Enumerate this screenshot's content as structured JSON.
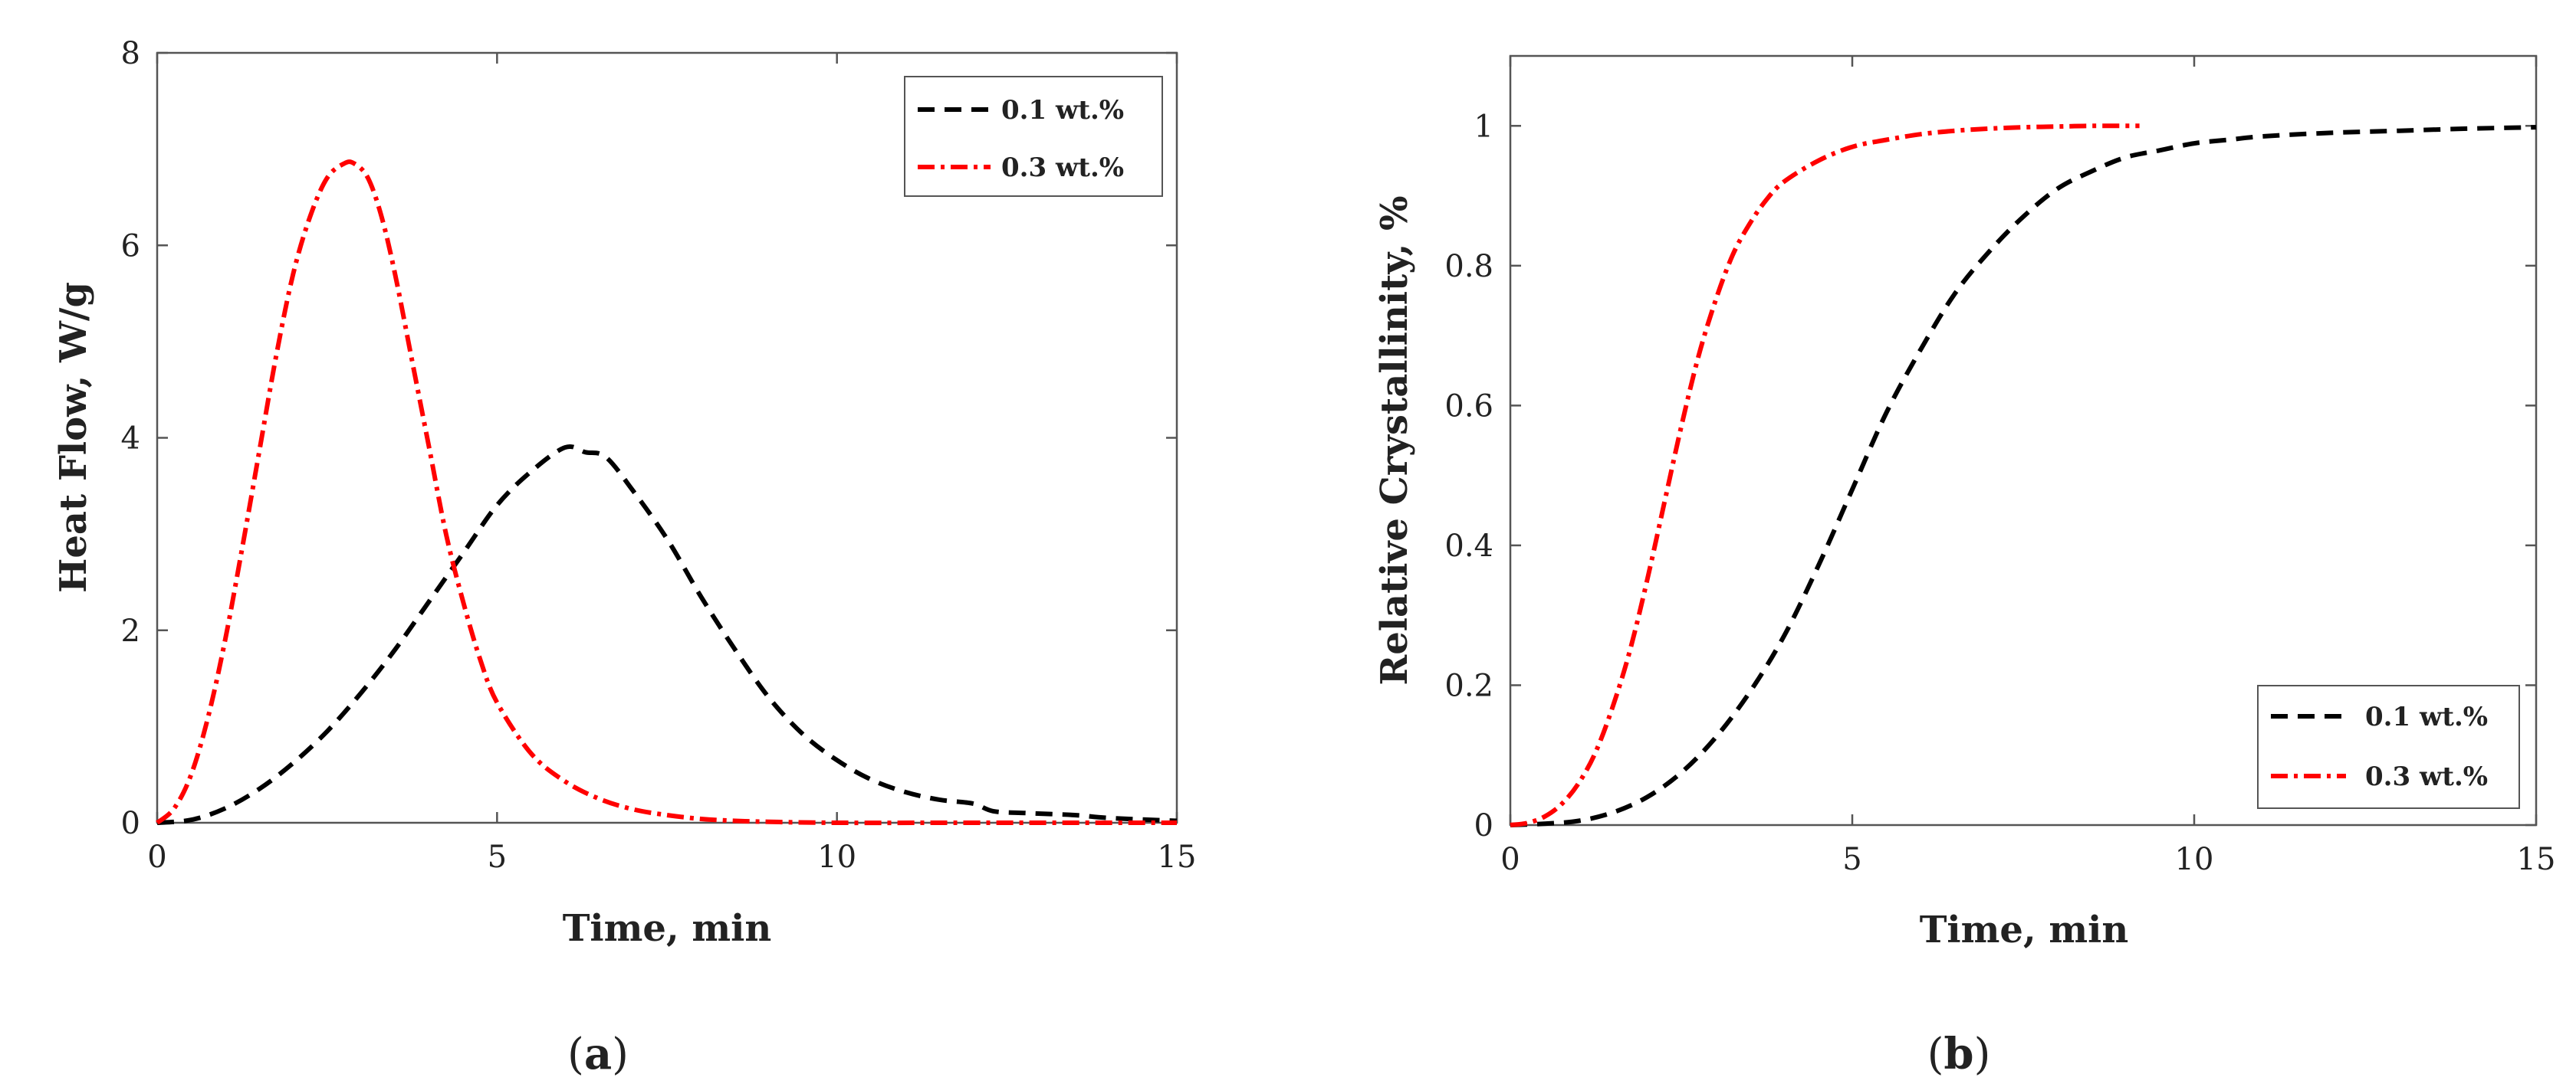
{
  "colors": {
    "series_0_1": "#000000",
    "series_0_3": "#ff0000",
    "axis": "#555555"
  },
  "chart_data": [
    {
      "type": "line",
      "id": "a",
      "caption": "a",
      "xlabel": "Time, min",
      "ylabel": "Heat Flow,  W/g",
      "xlim": [
        0,
        15
      ],
      "ylim": [
        0,
        8
      ],
      "xticks": [
        0,
        5,
        10,
        15
      ],
      "yticks": [
        0,
        2,
        4,
        6,
        8
      ],
      "legend_position": "top-right",
      "series": [
        {
          "name": "0.1 wt.%",
          "color": "#000000",
          "style": "dashed",
          "x": [
            0,
            0.5,
            1,
            1.5,
            2,
            2.5,
            3,
            3.5,
            4,
            4.5,
            5,
            5.5,
            6,
            6.3,
            6.6,
            7,
            7.5,
            8,
            8.5,
            9,
            9.5,
            10,
            10.5,
            11,
            11.5,
            12,
            12.3,
            12.8,
            13.5,
            14,
            15
          ],
          "y": [
            0.0,
            0.03,
            0.15,
            0.35,
            0.62,
            0.95,
            1.35,
            1.8,
            2.3,
            2.8,
            3.3,
            3.65,
            3.9,
            3.85,
            3.8,
            3.45,
            2.95,
            2.35,
            1.8,
            1.3,
            0.92,
            0.65,
            0.45,
            0.32,
            0.24,
            0.2,
            0.12,
            0.1,
            0.08,
            0.05,
            0.02
          ]
        },
        {
          "name": "0.3 wt.%",
          "color": "#ff0000",
          "style": "dashdot",
          "x": [
            0,
            0.25,
            0.5,
            0.75,
            1,
            1.25,
            1.5,
            1.75,
            2,
            2.25,
            2.5,
            2.75,
            2.9,
            3.1,
            3.3,
            3.5,
            3.75,
            4,
            4.25,
            4.5,
            4.75,
            5,
            5.5,
            6,
            6.5,
            7,
            7.5,
            8,
            8.5,
            9,
            10,
            12,
            15
          ],
          "y": [
            0.0,
            0.15,
            0.5,
            1.1,
            1.9,
            2.85,
            3.85,
            4.85,
            5.7,
            6.3,
            6.7,
            6.85,
            6.85,
            6.7,
            6.3,
            5.7,
            4.8,
            3.9,
            3.0,
            2.3,
            1.7,
            1.25,
            0.72,
            0.43,
            0.25,
            0.14,
            0.08,
            0.04,
            0.02,
            0.01,
            0.0,
            0.0,
            0.0
          ]
        }
      ]
    },
    {
      "type": "line",
      "id": "b",
      "caption": "b",
      "xlabel": "Time, min",
      "ylabel": "Relative Crystallinity, %",
      "xlim": [
        0,
        15
      ],
      "ylim": [
        0,
        1.1
      ],
      "xticks": [
        0,
        5,
        10,
        15
      ],
      "yticks": [
        0,
        0.2,
        0.4,
        0.6,
        0.8,
        1
      ],
      "legend_position": "bottom-right",
      "series": [
        {
          "name": "0.1 wt.%",
          "color": "#000000",
          "style": "dashed",
          "x": [
            0,
            0.5,
            1,
            1.5,
            2,
            2.5,
            3,
            3.5,
            4,
            4.5,
            5,
            5.5,
            6,
            6.5,
            7,
            7.5,
            8,
            8.5,
            9,
            9.5,
            10,
            10.5,
            11,
            12,
            13,
            14,
            15
          ],
          "y": [
            0.0,
            0.002,
            0.006,
            0.018,
            0.04,
            0.075,
            0.125,
            0.19,
            0.27,
            0.37,
            0.48,
            0.59,
            0.68,
            0.76,
            0.82,
            0.87,
            0.91,
            0.935,
            0.955,
            0.965,
            0.975,
            0.98,
            0.985,
            0.99,
            0.993,
            0.996,
            0.998
          ]
        },
        {
          "name": "0.3 wt.%",
          "color": "#ff0000",
          "style": "dashdot",
          "x": [
            0,
            0.25,
            0.5,
            0.75,
            1,
            1.25,
            1.5,
            1.75,
            2,
            2.25,
            2.5,
            2.75,
            3,
            3.25,
            3.5,
            3.75,
            4,
            4.5,
            5,
            5.5,
            6,
            6.5,
            7,
            7.5,
            8,
            8.5,
            9.2
          ],
          "y": [
            0.0,
            0.003,
            0.012,
            0.03,
            0.06,
            0.105,
            0.17,
            0.25,
            0.35,
            0.46,
            0.57,
            0.67,
            0.75,
            0.815,
            0.86,
            0.895,
            0.92,
            0.95,
            0.97,
            0.98,
            0.988,
            0.993,
            0.996,
            0.998,
            0.999,
            1.0,
            1.0
          ]
        }
      ]
    }
  ]
}
